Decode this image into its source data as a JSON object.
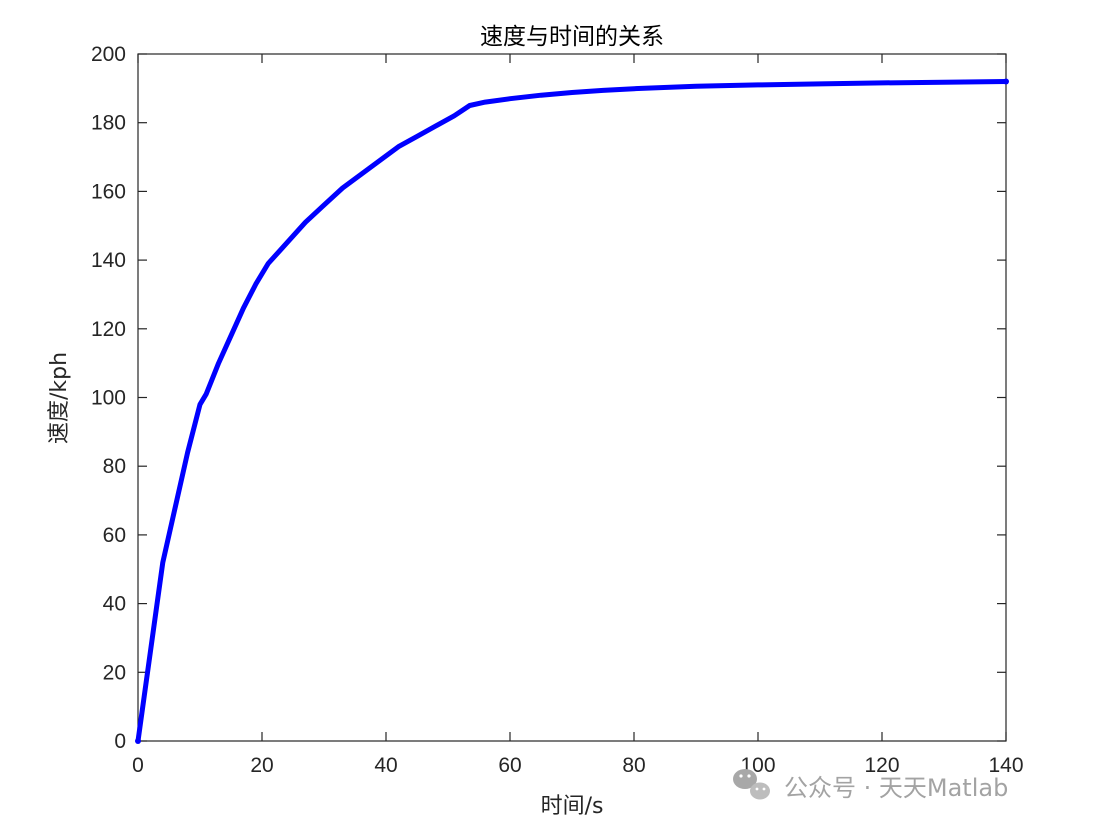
{
  "chart_data": {
    "type": "line",
    "title": "速度与时间的关系",
    "xlabel": "时间/s",
    "ylabel": "速度/kph",
    "xlim": [
      0,
      140
    ],
    "ylim": [
      0,
      200
    ],
    "xticks": [
      0,
      20,
      40,
      60,
      80,
      100,
      120,
      140
    ],
    "yticks": [
      0,
      20,
      40,
      60,
      80,
      100,
      120,
      140,
      160,
      180,
      200
    ],
    "grid": false,
    "series": [
      {
        "color": "#0000ff",
        "x": [
          0,
          1,
          2,
          3,
          4,
          6,
          8,
          10,
          11,
          13,
          15,
          17,
          19,
          21,
          23,
          25,
          27,
          30,
          33,
          36,
          39,
          42,
          45,
          48,
          51,
          53.5,
          56,
          60,
          65,
          70,
          75,
          80,
          90,
          100,
          110,
          120,
          130,
          140
        ],
        "y": [
          0,
          13,
          26,
          39,
          52,
          68,
          84,
          98,
          101,
          110,
          118,
          126,
          133,
          139,
          143,
          147,
          151,
          156,
          161,
          165,
          169,
          173,
          176,
          179,
          182,
          185,
          186,
          187,
          188,
          188.8,
          189.4,
          189.9,
          190.6,
          191.0,
          191.3,
          191.6,
          191.8,
          192.0
        ]
      }
    ]
  },
  "watermark": {
    "text": "公众号 · 天天Matlab",
    "icon": "wechat-icon"
  }
}
